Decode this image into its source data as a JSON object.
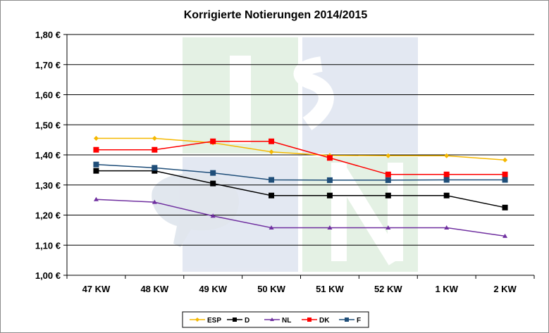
{
  "chart_data": {
    "type": "line",
    "title": "Korrigierte Notierungen 2014/2015",
    "xlabel": "",
    "ylabel": "",
    "categories": [
      "47 KW",
      "48 KW",
      "49 KW",
      "50 KW",
      "51 KW",
      "52 KW",
      "1 KW",
      "2 KW"
    ],
    "ylim": [
      1.0,
      1.8
    ],
    "ystep": 0.1,
    "y_tick_labels": [
      "1,00 €",
      "1,10 €",
      "1,20 €",
      "1,30 €",
      "1,40 €",
      "1,50 €",
      "1,60 €",
      "1,70 €",
      "1,80 €"
    ],
    "grid": "horizontal",
    "legend_position": "bottom",
    "watermark": "ISN logo",
    "series": [
      {
        "name": "ESP",
        "color": "#F5B800",
        "marker": "diamond",
        "values": [
          1.455,
          1.455,
          1.44,
          1.41,
          1.398,
          1.397,
          1.397,
          1.383
        ]
      },
      {
        "name": "D",
        "color": "#000000",
        "marker": "square",
        "values": [
          1.347,
          1.347,
          1.305,
          1.265,
          1.265,
          1.265,
          1.265,
          1.225
        ]
      },
      {
        "name": "NL",
        "color": "#7030A0",
        "marker": "triangle",
        "values": [
          1.252,
          1.243,
          1.197,
          1.158,
          1.158,
          1.158,
          1.158,
          1.13
        ]
      },
      {
        "name": "DK",
        "color": "#FF0000",
        "marker": "square",
        "values": [
          1.417,
          1.417,
          1.445,
          1.445,
          1.39,
          1.335,
          1.335,
          1.335
        ]
      },
      {
        "name": "F",
        "color": "#1F4E79",
        "marker": "square",
        "values": [
          1.368,
          1.357,
          1.34,
          1.317,
          1.316,
          1.316,
          1.317,
          1.317
        ]
      }
    ]
  }
}
